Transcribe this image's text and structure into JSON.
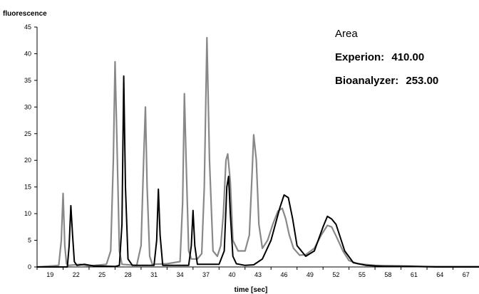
{
  "chart_data": {
    "type": "line",
    "ylabel": "fluorescence",
    "xlabel": "time [sec]",
    "xlim": [
      19,
      70
    ],
    "ylim": [
      0,
      45
    ],
    "yticks": [
      0,
      5,
      10,
      15,
      20,
      25,
      30,
      35,
      40,
      45
    ],
    "xticks": [
      "19",
      "22",
      "25",
      "28",
      "31",
      "34",
      "37",
      "40",
      "43",
      "46",
      "49",
      "52",
      "55",
      "58",
      "61",
      "64",
      "67"
    ],
    "grid": false,
    "legend": {
      "title": "Area",
      "entries": [
        {
          "label": "Experion:",
          "value": "410.00"
        },
        {
          "label": "Bioanalyzer:",
          "value": "253.00"
        }
      ],
      "placement": "top-right"
    },
    "series": [
      {
        "color": "#888888",
        "x": [
          19,
          21.5,
          21.8,
          22.0,
          22.2,
          22.4,
          22.6,
          24.0,
          25.0,
          27.0,
          27.5,
          27.8,
          28.0,
          28.2,
          28.5,
          28.8,
          30.5,
          31.0,
          31.3,
          31.5,
          31.7,
          32.0,
          32.3,
          34.0,
          35.5,
          35.8,
          36.0,
          36.2,
          36.5,
          36.8,
          37.5,
          38.0,
          38.3,
          38.6,
          38.9,
          39.3,
          39.8,
          40.2,
          40.5,
          40.8,
          41.0,
          41.3,
          41.6,
          42.2,
          43.0,
          43.5,
          43.8,
          44.0,
          44.3,
          44.6,
          45.0,
          45.6,
          46.2,
          46.8,
          47.3,
          47.7,
          48.1,
          48.6,
          49.3,
          50.0,
          51.0,
          51.8,
          52.5,
          53.0,
          53.6,
          54.3,
          55.0,
          56.0,
          58.0,
          61.0,
          64.0,
          67.0,
          70.0
        ],
        "y": [
          0,
          0.3,
          5,
          13.8,
          4,
          0.6,
          0.3,
          0.5,
          0.2,
          0.5,
          3,
          20,
          38.5,
          25,
          3,
          0.5,
          0.3,
          4,
          20,
          30,
          15,
          2,
          0.5,
          0.6,
          1,
          12,
          32.5,
          20,
          3,
          1.5,
          1.5,
          2.5,
          15,
          43,
          20,
          3,
          2,
          4,
          10,
          20,
          21.2,
          16,
          5,
          3,
          3,
          6,
          17,
          24.8,
          20,
          8,
          3.5,
          5,
          8,
          10.5,
          11,
          9,
          6,
          3.5,
          2.2,
          2.3,
          3.5,
          6,
          7.8,
          7.5,
          5.5,
          3,
          1.2,
          0.6,
          0.3,
          0.2,
          0.1,
          0.1,
          0.1
        ]
      },
      {
        "color": "#000000",
        "x": [
          19,
          22.5,
          22.7,
          22.9,
          23.1,
          23.3,
          23.6,
          24.5,
          25.5,
          28.0,
          28.5,
          28.8,
          29.0,
          29.2,
          29.5,
          30.0,
          32.5,
          32.8,
          33.0,
          33.2,
          33.5,
          35.5,
          36.5,
          36.8,
          37.0,
          37.2,
          37.5,
          40.0,
          40.6,
          40.9,
          41.1,
          41.3,
          41.6,
          42.0,
          43.0,
          44.0,
          45.0,
          46.0,
          47.0,
          47.5,
          48.0,
          48.5,
          49.0,
          50.0,
          51.0,
          52.0,
          52.5,
          53.0,
          53.5,
          54.5,
          55.5,
          57.0,
          59.0,
          62.0,
          65.0,
          70.0
        ],
        "y": [
          0,
          0,
          4,
          11.5,
          6,
          1,
          0.3,
          0.5,
          0.2,
          0.1,
          0.3,
          8,
          35.8,
          15,
          1.5,
          0.3,
          0.3,
          5,
          14.6,
          6,
          0.3,
          0.3,
          0.3,
          4,
          10.6,
          4,
          0.5,
          0.5,
          3,
          15,
          17,
          10,
          2,
          0.6,
          0.3,
          0.4,
          1.5,
          5,
          11,
          13.5,
          13,
          9,
          4,
          2,
          3,
          7.5,
          9.5,
          9,
          8,
          3,
          0.8,
          0.3,
          0.1,
          0.1,
          0,
          0
        ]
      }
    ]
  }
}
